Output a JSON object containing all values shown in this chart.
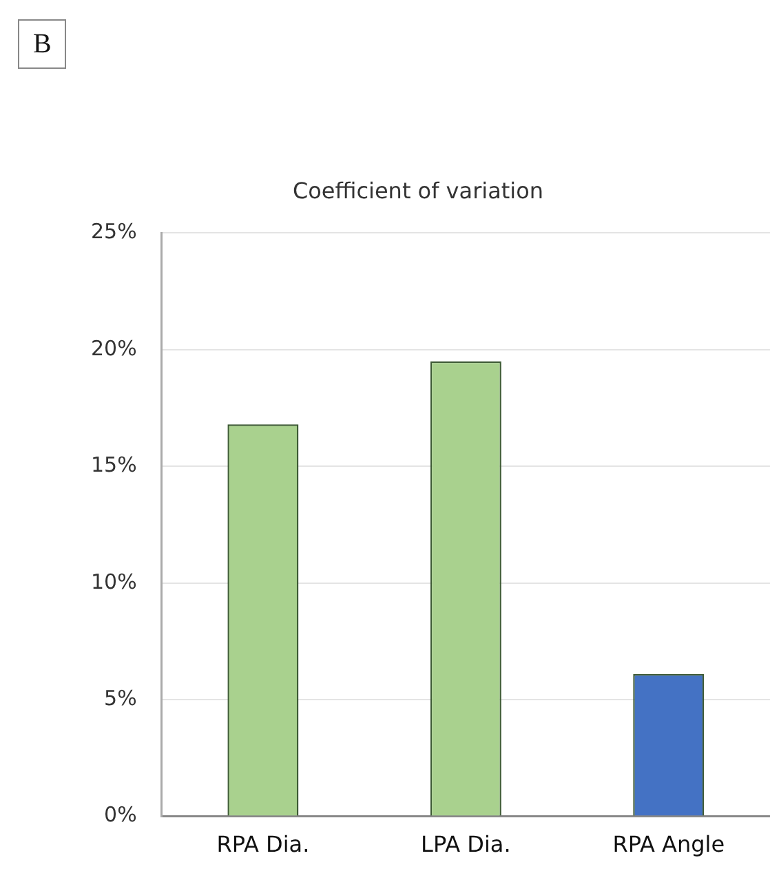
{
  "chart_data": {
    "type": "bar",
    "title": "Coefficient of variation",
    "annotations": [
      "B"
    ],
    "categories": [
      "RPA Dia.",
      "LPA Dia.",
      "RPA Angle"
    ],
    "values": [
      16.8,
      19.5,
      6.1
    ],
    "colors": [
      "#a9d18e",
      "#a9d18e",
      "#4472c4"
    ],
    "ylim": [
      0,
      25
    ],
    "yticks": [
      {
        "value": 0,
        "label": "0%"
      },
      {
        "value": 5,
        "label": "5%"
      },
      {
        "value": 10,
        "label": "10%"
      },
      {
        "value": 15,
        "label": "15%"
      },
      {
        "value": 20,
        "label": "20%"
      },
      {
        "value": 25,
        "label": "25%"
      }
    ],
    "grid": "y",
    "legend": false
  }
}
